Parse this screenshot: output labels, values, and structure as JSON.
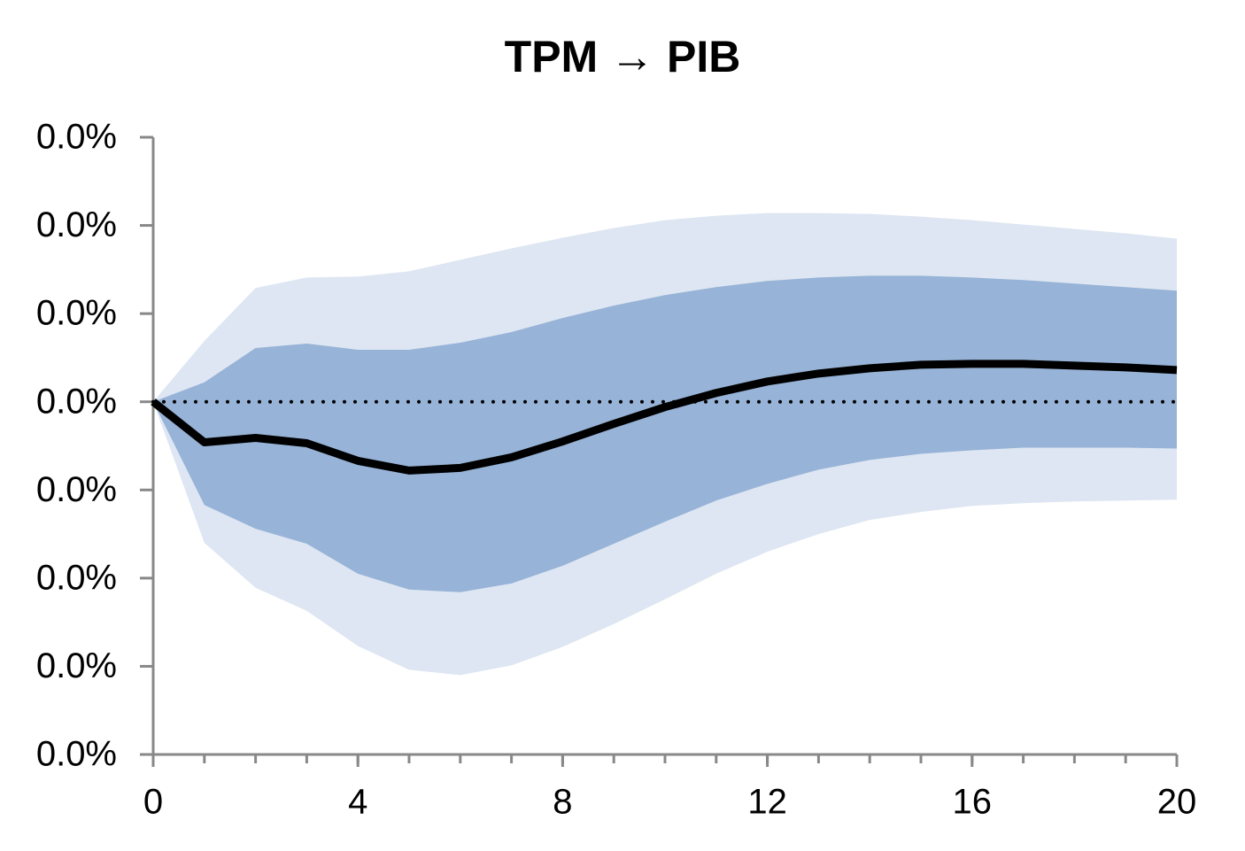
{
  "chart_data": {
    "type": "line",
    "title": "TPM → PIB",
    "x": [
      0,
      1,
      2,
      3,
      4,
      5,
      6,
      7,
      8,
      9,
      10,
      11,
      12,
      13,
      14,
      15,
      16,
      17,
      18,
      19,
      20
    ],
    "xlim": [
      0,
      20
    ],
    "xticks": [
      0,
      4,
      8,
      12,
      16,
      20
    ],
    "ylim": [
      -0.04,
      0.03
    ],
    "yticks": [
      {
        "value": 0.03,
        "label": "0.0%"
      },
      {
        "value": 0.02,
        "label": "0.0%"
      },
      {
        "value": 0.01,
        "label": "0.0%"
      },
      {
        "value": 0,
        "label": "0.0%"
      },
      {
        "value": -0.01,
        "label": "0.0%"
      },
      {
        "value": -0.02,
        "label": "0.0%"
      },
      {
        "value": -0.03,
        "label": "0.0%"
      },
      {
        "value": -0.04,
        "label": "0.0%"
      }
    ],
    "reference_line": 0,
    "bands": [
      {
        "color": "#dde6f2",
        "upper": [
          0,
          0.0069,
          0.0129,
          0.0141,
          0.0142,
          0.0148,
          0.0161,
          0.0174,
          0.0186,
          0.0197,
          0.0206,
          0.0211,
          0.0214,
          0.0214,
          0.0213,
          0.021,
          0.0206,
          0.0201,
          0.0196,
          0.0191,
          0.0185
        ],
        "lower": [
          0,
          -0.016,
          -0.0211,
          -0.0237,
          -0.0277,
          -0.0304,
          -0.031,
          -0.0299,
          -0.0278,
          -0.0252,
          -0.0224,
          -0.0195,
          -0.017,
          -0.015,
          -0.0134,
          -0.0125,
          -0.0118,
          -0.0115,
          -0.0113,
          -0.0112,
          -0.0111
        ]
      },
      {
        "color": "#97b3d7",
        "upper": [
          0,
          0.0022,
          0.0061,
          0.0066,
          0.0059,
          0.0059,
          0.0067,
          0.0079,
          0.0095,
          0.0109,
          0.0121,
          0.013,
          0.0137,
          0.0141,
          0.0143,
          0.0143,
          0.0141,
          0.0138,
          0.0134,
          0.013,
          0.0126
        ],
        "lower": [
          0,
          -0.0117,
          -0.0144,
          -0.0161,
          -0.0195,
          -0.0213,
          -0.0216,
          -0.0206,
          -0.0186,
          -0.0161,
          -0.0136,
          -0.0112,
          -0.0093,
          -0.0077,
          -0.0066,
          -0.0059,
          -0.0055,
          -0.0052,
          -0.0052,
          -0.0052,
          -0.0053
        ]
      }
    ],
    "series": [
      {
        "color": "#000000",
        "values": [
          0,
          -0.0046,
          -0.0041,
          -0.0047,
          -0.0067,
          -0.0078,
          -0.0075,
          -0.0063,
          -0.0045,
          -0.0025,
          -0.0006,
          0.001,
          0.0023,
          0.0032,
          0.0038,
          0.0042,
          0.0043,
          0.0043,
          0.0041,
          0.0039,
          0.0036
        ]
      }
    ]
  }
}
